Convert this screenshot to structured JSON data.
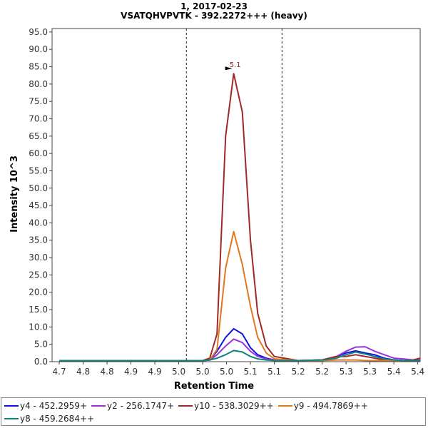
{
  "chart_data": {
    "type": "line",
    "title": "1, 2017-02-23",
    "subtitle": "VSATQHVPVTK - 392.2272+++ (heavy)",
    "xlabel": "Retention Time",
    "ylabel": "Intensity 10^3",
    "xlim": [
      4.685,
      5.455
    ],
    "ylim": [
      0,
      96
    ],
    "xticks": [
      "4.7",
      "4.8",
      "4.8",
      "4.9",
      "4.9",
      "5.0",
      "5.0",
      "5.0",
      "5.1",
      "5.1",
      "5.2",
      "5.2",
      "5.3",
      "5.3",
      "5.4",
      "5.4"
    ],
    "xtick_values": [
      4.7,
      4.75,
      4.8,
      4.85,
      4.9,
      4.95,
      5.0,
      5.05,
      5.1,
      5.15,
      5.2,
      5.25,
      5.3,
      5.35,
      5.4,
      5.45
    ],
    "yticks": [
      "0.0",
      "5.0",
      "10.0",
      "15.0",
      "20.0",
      "25.0",
      "30.0",
      "35.0",
      "40.0",
      "45.0",
      "50.0",
      "55.0",
      "60.0",
      "65.0",
      "70.0",
      "75.0",
      "80.0",
      "85.0",
      "90.0",
      "95.0"
    ],
    "ytick_values": [
      0,
      5,
      10,
      15,
      20,
      25,
      30,
      35,
      40,
      45,
      50,
      55,
      60,
      65,
      70,
      75,
      80,
      85,
      90,
      95
    ],
    "boundaries": [
      4.966,
      5.166
    ],
    "peak_annotation": {
      "label": "5.1",
      "x": 5.065,
      "y": 83
    },
    "grid": false,
    "legend_position": "bottom",
    "series": [
      {
        "name": "y4 - 452.2959+",
        "color": "#1010e0",
        "x": [
          4.7,
          4.8,
          4.9,
          5.0,
          5.015,
          5.03,
          5.048,
          5.065,
          5.083,
          5.1,
          5.115,
          5.133,
          5.15,
          5.2,
          5.25,
          5.28,
          5.3,
          5.32,
          5.34,
          5.36,
          5.38,
          5.4,
          5.42,
          5.44,
          5.455
        ],
        "y": [
          0.3,
          0.3,
          0.3,
          0.3,
          0.5,
          3,
          7,
          9.5,
          8,
          4,
          2,
          1,
          0.5,
          0.3,
          0.5,
          1.5,
          2.5,
          3.1,
          2.5,
          2,
          1,
          0.5,
          0.3,
          0.3,
          0.3
        ]
      },
      {
        "name": "y2 - 256.1747+",
        "color": "#9933dd",
        "x": [
          4.7,
          4.8,
          4.9,
          5.0,
          5.015,
          5.03,
          5.048,
          5.065,
          5.083,
          5.1,
          5.115,
          5.133,
          5.15,
          5.2,
          5.25,
          5.28,
          5.3,
          5.32,
          5.34,
          5.36,
          5.38,
          5.4,
          5.42,
          5.44,
          5.455
        ],
        "y": [
          0.3,
          0.3,
          0.3,
          0.3,
          0.5,
          2,
          4.5,
          6.5,
          5.5,
          3,
          1.5,
          0.8,
          0.5,
          0.3,
          0.5,
          1.5,
          3,
          4.2,
          4.3,
          3,
          2,
          1,
          0.8,
          0.5,
          0.5
        ]
      },
      {
        "name": "y10 - 538.3029++",
        "color": "#a02828",
        "x": [
          4.7,
          4.8,
          4.9,
          5.0,
          5.015,
          5.03,
          5.048,
          5.065,
          5.083,
          5.1,
          5.115,
          5.133,
          5.15,
          5.2,
          5.25,
          5.28,
          5.3,
          5.32,
          5.34,
          5.36,
          5.38,
          5.4,
          5.42,
          5.44,
          5.455
        ],
        "y": [
          0.3,
          0.3,
          0.3,
          0.3,
          1,
          8,
          65,
          83,
          72,
          35,
          14,
          4.5,
          1.5,
          0.3,
          0.5,
          1.5,
          1.5,
          2,
          1.5,
          1,
          0.5,
          0.5,
          0.3,
          0.5,
          1
        ]
      },
      {
        "name": "y9 - 494.7869++",
        "color": "#e07820",
        "x": [
          4.7,
          4.8,
          4.9,
          5.0,
          5.015,
          5.03,
          5.048,
          5.065,
          5.083,
          5.1,
          5.115,
          5.133,
          5.15,
          5.2,
          5.25,
          5.28,
          5.3,
          5.32,
          5.34,
          5.36,
          5.38,
          5.4,
          5.42,
          5.44,
          5.455
        ],
        "y": [
          0.3,
          0.3,
          0.3,
          0.3,
          0.5,
          3.5,
          27,
          37.5,
          28,
          16,
          7,
          2.5,
          0.8,
          0.3,
          0.3,
          0.5,
          0.5,
          0.5,
          0.3,
          0.3,
          0.3,
          0.3,
          0.3,
          0.3,
          0.3
        ]
      },
      {
        "name": "y8 - 459.2684++",
        "color": "#108080",
        "x": [
          4.7,
          4.8,
          4.9,
          5.0,
          5.015,
          5.03,
          5.048,
          5.065,
          5.083,
          5.1,
          5.115,
          5.133,
          5.15,
          5.2,
          5.25,
          5.28,
          5.3,
          5.32,
          5.34,
          5.36,
          5.38,
          5.4,
          5.42,
          5.44,
          5.455
        ],
        "y": [
          0.3,
          0.3,
          0.3,
          0.3,
          0.5,
          1,
          2,
          3.2,
          2.8,
          1.5,
          0.8,
          0.5,
          0.3,
          0.3,
          0.5,
          1,
          2,
          2.8,
          2.2,
          1.5,
          0.8,
          0.5,
          0.3,
          0.3,
          0.3
        ]
      }
    ]
  }
}
